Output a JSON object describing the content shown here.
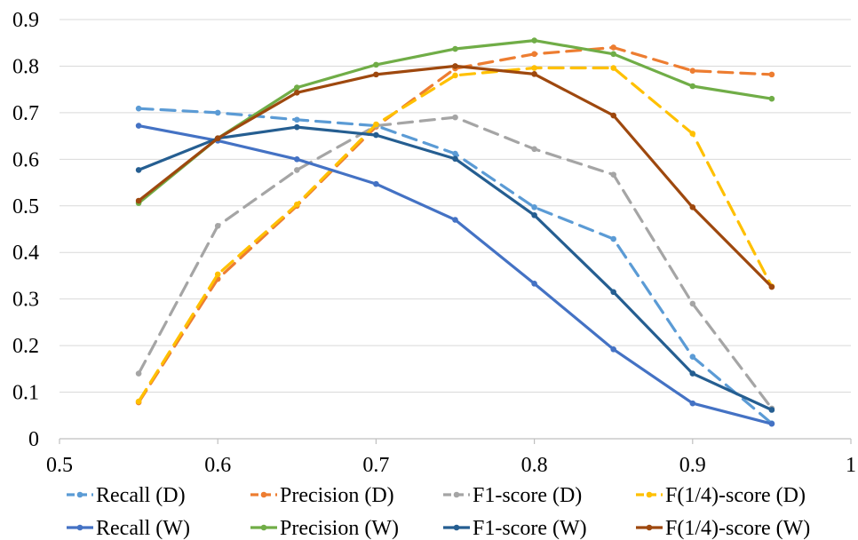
{
  "chart_data": {
    "type": "line",
    "title": "",
    "xlabel": "",
    "ylabel": "",
    "xlim": [
      0.5,
      1.0
    ],
    "ylim": [
      0,
      0.9
    ],
    "x_ticks": [
      "0.5",
      "0.6",
      "0.7",
      "0.8",
      "0.9",
      "1"
    ],
    "y_ticks": [
      "0",
      "0.1",
      "0.2",
      "0.3",
      "0.4",
      "0.5",
      "0.6",
      "0.7",
      "0.8",
      "0.9"
    ],
    "grid": "horizontal",
    "legend_position": "bottom",
    "x": [
      0.55,
      0.6,
      0.65,
      0.7,
      0.75,
      0.8,
      0.85,
      0.9,
      0.95
    ],
    "series": [
      {
        "name": "Recall (D)",
        "color": "#5B9BD5",
        "dash": true,
        "values": [
          0.709,
          0.7,
          0.685,
          0.672,
          0.612,
          0.497,
          0.429,
          0.176,
          0.033
        ]
      },
      {
        "name": "Precision (D)",
        "color": "#ED7D31",
        "dash": true,
        "values": [
          0.078,
          0.343,
          0.5,
          0.67,
          0.795,
          0.826,
          0.84,
          0.79,
          0.782
        ]
      },
      {
        "name": "F1-score (D)",
        "color": "#A5A5A5",
        "dash": true,
        "values": [
          0.14,
          0.457,
          0.577,
          0.672,
          0.69,
          0.622,
          0.567,
          0.29,
          0.065
        ]
      },
      {
        "name": "F(1/4)-score (D)",
        "color": "#FFC000",
        "dash": true,
        "values": [
          0.08,
          0.353,
          0.503,
          0.675,
          0.78,
          0.796,
          0.796,
          0.655,
          0.327
        ]
      },
      {
        "name": "Recall (W)",
        "color": "#4472C4",
        "dash": false,
        "values": [
          0.672,
          0.64,
          0.6,
          0.547,
          0.47,
          0.333,
          0.192,
          0.076,
          0.032
        ]
      },
      {
        "name": "Precision (W)",
        "color": "#70AD47",
        "dash": false,
        "values": [
          0.506,
          0.645,
          0.754,
          0.803,
          0.837,
          0.855,
          0.826,
          0.757,
          0.73
        ]
      },
      {
        "name": "F1-score (W)",
        "color": "#255E91",
        "dash": false,
        "values": [
          0.577,
          0.645,
          0.669,
          0.652,
          0.601,
          0.48,
          0.315,
          0.14,
          0.062
        ]
      },
      {
        "name": "F(1/4)-score (W)",
        "color": "#9E480E",
        "dash": false,
        "values": [
          0.511,
          0.645,
          0.743,
          0.782,
          0.8,
          0.783,
          0.694,
          0.497,
          0.326
        ]
      }
    ]
  }
}
